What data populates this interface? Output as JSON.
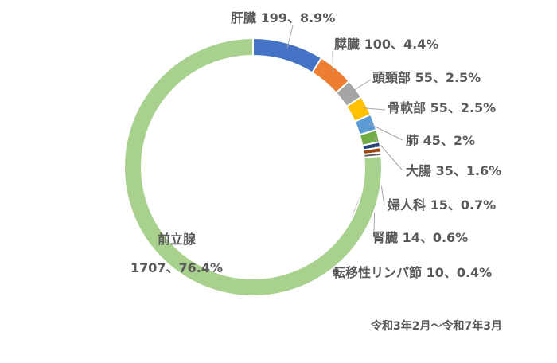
{
  "chart_data": {
    "type": "donut",
    "categories": [
      "肝臓",
      "膵臓",
      "頭頸部",
      "骨軟部",
      "肺",
      "大腸",
      "婦人科",
      "腎臓",
      "転移性リンパ節",
      "前立腺"
    ],
    "values": [
      199,
      100,
      55,
      55,
      45,
      35,
      15,
      14,
      10,
      1707
    ],
    "value_labels": [
      [
        "肝臓 199、8.9%"
      ],
      [
        "膵臓 100、4.4%"
      ],
      [
        "頭頸部 55、2.5%"
      ],
      [
        "骨軟部 55、2.5%"
      ],
      [
        "肺 45、2%"
      ],
      [
        "大腸 35、1.6%"
      ],
      [
        "婦人科 15、0.7%"
      ],
      [
        "腎臓 14、0.6%"
      ],
      [
        "転移性リンパ節 10、0.4%"
      ],
      [
        "前立腺",
        "1707、76.4%"
      ]
    ],
    "colors": [
      "#4472c4",
      "#ed7d31",
      "#a5a5a5",
      "#ffc000",
      "#5b9bd5",
      "#70ad47",
      "#264478",
      "#9e480e",
      "#636363",
      "#a9d18e"
    ],
    "note": "令和3年2月～令和7年3月"
  }
}
